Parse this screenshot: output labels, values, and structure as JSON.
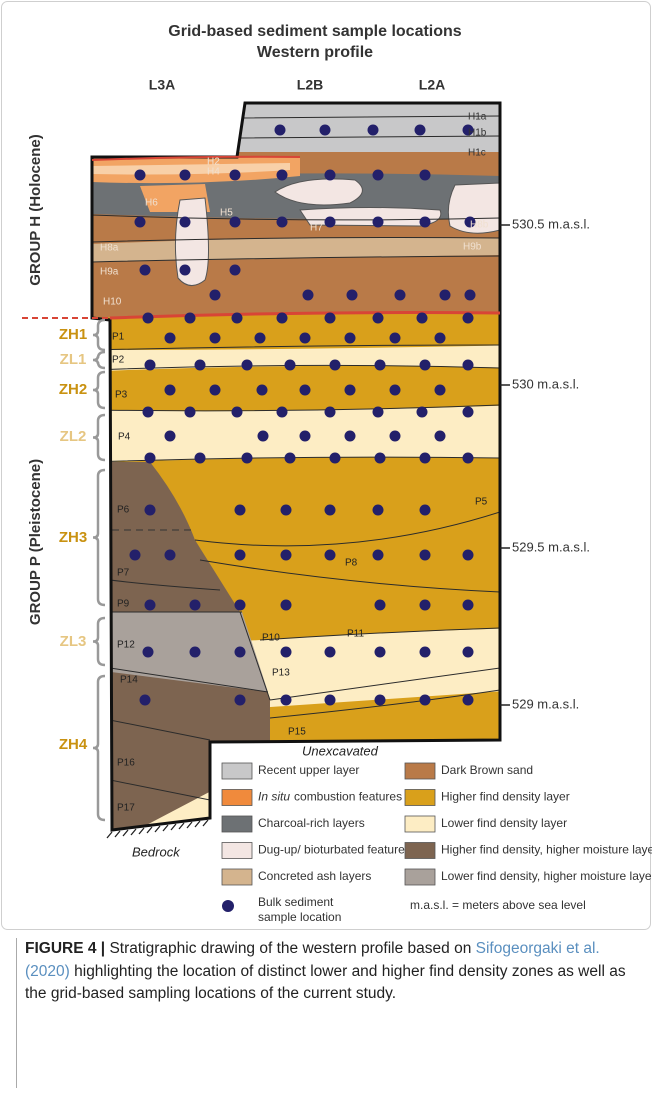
{
  "figure": {
    "title": [
      "Grid-based sediment sample locations",
      "Western profile"
    ],
    "columns": [
      "L3A",
      "L2B",
      "L2A"
    ],
    "groups": [
      "GROUP H (Holocene)",
      "GROUP P (Pleistocene)"
    ],
    "zones": [
      "ZH1",
      "ZL1",
      "ZH2",
      "ZL2",
      "ZH3",
      "ZL3",
      "ZH4"
    ],
    "layers": [
      "H1a",
      "H1b",
      "H1c",
      "H2",
      "H4",
      "H6",
      "H5",
      "H7",
      "H8b",
      "H8a",
      "H9b",
      "H9a",
      "H10",
      "P1",
      "P2",
      "P3",
      "P4",
      "P5",
      "P6",
      "P7",
      "P8",
      "P9",
      "P10",
      "P11",
      "P12",
      "P13",
      "P14",
      "P15",
      "P16",
      "P17"
    ],
    "elevations": [
      "530.5 m.a.s.l.",
      "530 m.a.s.l.",
      "529.5 m.a.s.l.",
      "529 m.a.s.l."
    ],
    "unexcavated": "Unexcavated",
    "bedrock": "Bedrock"
  },
  "legend": {
    "items": [
      {
        "label": "Recent upper layer",
        "color": "#c8c8c9"
      },
      {
        "emphasis": "In situ",
        "label": "combustion features",
        "color": "#f08a3c"
      },
      {
        "label": "Charcoal-rich layers",
        "color": "#6d7174"
      },
      {
        "label": "Dug-up/ bioturbated features",
        "color": "#f3e6e3"
      },
      {
        "label": "Concreted ash layers",
        "color": "#d4b48e"
      },
      {
        "label": "Dark Brown sand",
        "color": "#b97a48"
      },
      {
        "label": "Higher find density layer",
        "color": "#d9a01b"
      },
      {
        "label": "Lower find density layer",
        "color": "#fdedc4"
      },
      {
        "label": "Higher find density, higher moisture layer",
        "color": "#7d6450"
      },
      {
        "label": "Lower find density, higher moisture layer",
        "color": "#a9a19b"
      }
    ],
    "sample": [
      "Bulk sediment",
      "sample location"
    ],
    "note": "m.a.s.l. = meters above sea level"
  },
  "caption": {
    "label": "FIGURE 4 |",
    "text_before": "Stratigraphic drawing of the western profile based on",
    "reference": "Sifogeorgaki et al. (2020)",
    "text_after": "highlighting the location of distinct lower and higher find density zones as well as the grid-based sampling locations of the current study."
  }
}
